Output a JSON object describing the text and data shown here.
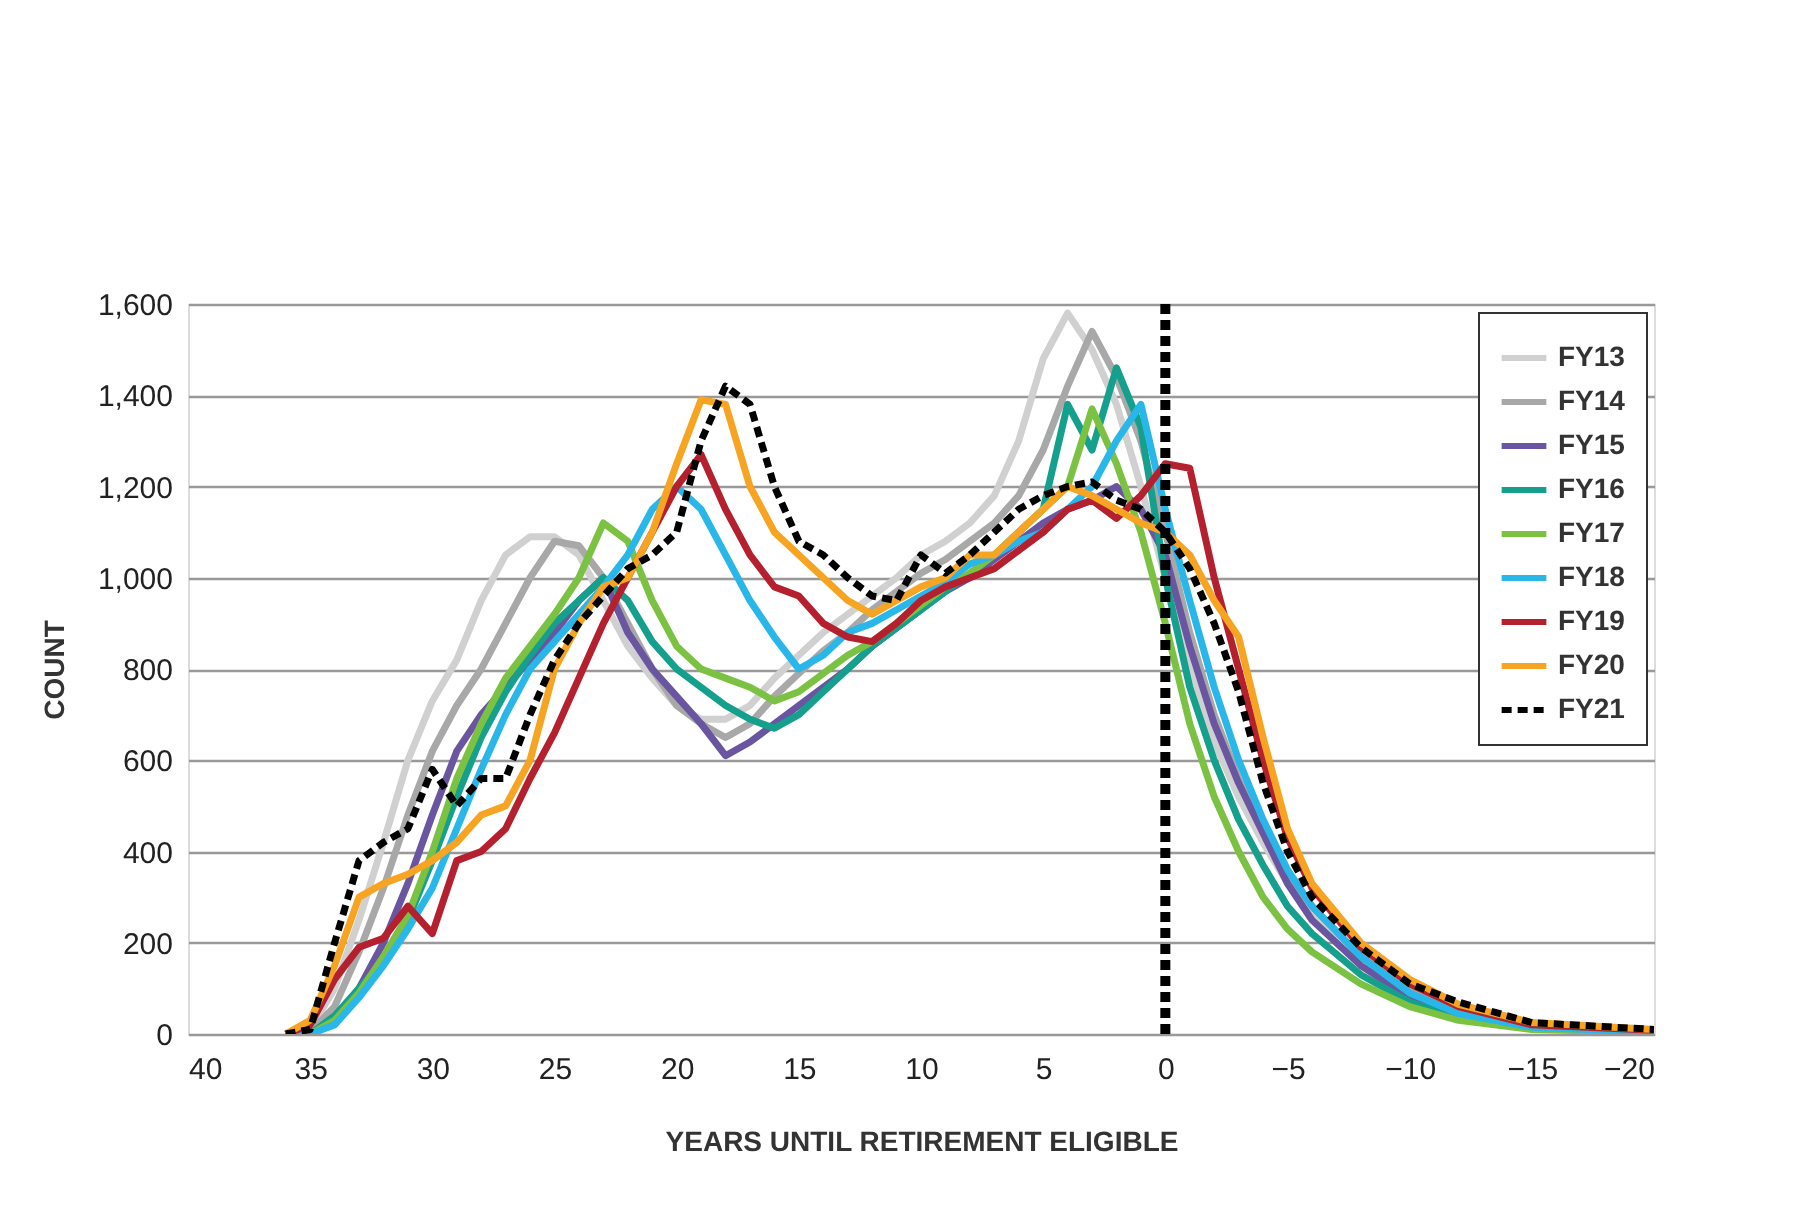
{
  "chart_data": {
    "type": "line",
    "xlabel": "YEARS UNTIL RETIREMENT ELIGIBLE",
    "ylabel": "COUNT",
    "x": [
      36,
      35,
      34,
      33,
      32,
      31,
      30,
      29,
      28,
      27,
      26,
      25,
      24,
      23,
      22,
      21,
      20,
      19,
      18,
      17,
      16,
      15,
      14,
      13,
      12,
      11,
      10,
      9,
      8,
      7,
      6,
      5,
      4,
      3,
      2,
      1,
      0,
      -1,
      -2,
      -3,
      -4,
      -5,
      -6,
      -8,
      -10,
      -12,
      -15,
      -20
    ],
    "series": [
      {
        "name": "FY13",
        "color": "#d0d0d0",
        "line_style": "solid",
        "values": [
          0,
          10,
          100,
          250,
          420,
          600,
          730,
          820,
          950,
          1050,
          1090,
          1090,
          1050,
          950,
          850,
          780,
          720,
          690,
          690,
          720,
          780,
          830,
          880,
          920,
          960,
          1000,
          1050,
          1080,
          1120,
          1180,
          1300,
          1480,
          1580,
          1500,
          1380,
          1200,
          1000,
          800,
          640,
          520,
          420,
          330,
          260,
          160,
          90,
          50,
          20,
          5
        ]
      },
      {
        "name": "FY14",
        "color": "#a8a8a8",
        "line_style": "solid",
        "values": [
          0,
          5,
          60,
          180,
          320,
          480,
          620,
          720,
          800,
          900,
          1000,
          1080,
          1070,
          1000,
          900,
          800,
          720,
          680,
          650,
          680,
          740,
          790,
          840,
          880,
          930,
          970,
          1010,
          1040,
          1080,
          1120,
          1180,
          1280,
          1420,
          1540,
          1440,
          1300,
          1100,
          880,
          700,
          560,
          450,
          350,
          280,
          170,
          95,
          50,
          20,
          5
        ]
      },
      {
        "name": "FY15",
        "color": "#6a55a0",
        "line_style": "solid",
        "values": [
          0,
          0,
          30,
          100,
          200,
          330,
          480,
          620,
          700,
          760,
          820,
          880,
          950,
          1000,
          880,
          800,
          740,
          680,
          610,
          640,
          680,
          720,
          760,
          800,
          850,
          890,
          930,
          970,
          1000,
          1040,
          1080,
          1120,
          1150,
          1170,
          1200,
          1150,
          1050,
          850,
          680,
          550,
          440,
          330,
          250,
          150,
          80,
          40,
          15,
          5
        ]
      },
      {
        "name": "FY16",
        "color": "#14a08c",
        "line_style": "solid",
        "values": [
          0,
          0,
          40,
          100,
          160,
          250,
          380,
          520,
          650,
          750,
          830,
          900,
          950,
          1000,
          950,
          860,
          800,
          760,
          720,
          690,
          670,
          700,
          750,
          800,
          850,
          890,
          930,
          970,
          1010,
          1050,
          1100,
          1150,
          1380,
          1280,
          1460,
          1330,
          1000,
          760,
          600,
          470,
          370,
          280,
          220,
          130,
          70,
          35,
          12,
          4
        ]
      },
      {
        "name": "FY17",
        "color": "#7cc242",
        "line_style": "solid",
        "values": [
          0,
          0,
          30,
          90,
          170,
          260,
          400,
          560,
          680,
          780,
          850,
          920,
          1000,
          1120,
          1080,
          950,
          850,
          800,
          780,
          760,
          730,
          750,
          790,
          830,
          860,
          900,
          940,
          980,
          1010,
          1050,
          1100,
          1150,
          1200,
          1370,
          1250,
          1100,
          900,
          680,
          520,
          400,
          300,
          230,
          180,
          110,
          60,
          30,
          10,
          3
        ]
      },
      {
        "name": "FY18",
        "color": "#29b6e8",
        "line_style": "solid",
        "values": [
          0,
          0,
          20,
          80,
          150,
          230,
          320,
          450,
          580,
          700,
          800,
          860,
          920,
          980,
          1050,
          1150,
          1200,
          1150,
          1050,
          950,
          870,
          800,
          830,
          880,
          900,
          930,
          960,
          990,
          1030,
          1050,
          1080,
          1100,
          1150,
          1200,
          1300,
          1380,
          1150,
          950,
          760,
          600,
          470,
          360,
          280,
          170,
          90,
          45,
          15,
          4
        ]
      },
      {
        "name": "FY19",
        "color": "#b5202e",
        "line_style": "solid",
        "values": [
          0,
          20,
          120,
          190,
          210,
          280,
          220,
          380,
          400,
          450,
          560,
          660,
          780,
          900,
          1000,
          1100,
          1200,
          1270,
          1150,
          1050,
          980,
          960,
          900,
          870,
          860,
          900,
          950,
          980,
          1000,
          1020,
          1060,
          1100,
          1150,
          1170,
          1130,
          1180,
          1250,
          1240,
          1000,
          800,
          600,
          430,
          320,
          190,
          110,
          60,
          20,
          8
        ]
      },
      {
        "name": "FY20",
        "color": "#f7a423",
        "line_style": "solid",
        "values": [
          0,
          30,
          150,
          300,
          330,
          350,
          380,
          420,
          480,
          500,
          600,
          800,
          900,
          980,
          1000,
          1100,
          1250,
          1390,
          1380,
          1200,
          1100,
          1050,
          1000,
          950,
          920,
          950,
          980,
          1000,
          1050,
          1050,
          1100,
          1150,
          1200,
          1180,
          1150,
          1120,
          1100,
          1050,
          950,
          870,
          650,
          450,
          330,
          200,
          120,
          65,
          25,
          10
        ]
      },
      {
        "name": "FY21",
        "color": "#000000",
        "line_style": "dashed",
        "values": [
          0,
          10,
          200,
          380,
          420,
          450,
          580,
          500,
          560,
          560,
          700,
          820,
          900,
          960,
          1020,
          1050,
          1100,
          1300,
          1420,
          1380,
          1200,
          1080,
          1050,
          1000,
          960,
          950,
          1050,
          1010,
          1050,
          1100,
          1150,
          1180,
          1200,
          1210,
          1170,
          1150,
          1100,
          1020,
          900,
          750,
          550,
          400,
          300,
          190,
          110,
          70,
          25,
          10
        ]
      }
    ],
    "xlim": [
      40,
      -20
    ],
    "xticks": [
      40,
      35,
      30,
      25,
      20,
      15,
      10,
      5,
      0,
      -5,
      -10,
      -15,
      -20
    ],
    "ylim": [
      0,
      1600
    ],
    "yticks": [
      0,
      200,
      400,
      600,
      800,
      {
        "value": 1000,
        "label": "1,000"
      },
      {
        "value": 1200,
        "label": "1,200"
      },
      {
        "value": 1400,
        "label": "1,400"
      },
      {
        "value": 1600,
        "label": "1,600"
      }
    ],
    "ref_lines": [
      {
        "axis": "x",
        "value": 0,
        "color": "#000000",
        "line_style": "dashed"
      }
    ],
    "grid": "y",
    "legend": "top right"
  }
}
